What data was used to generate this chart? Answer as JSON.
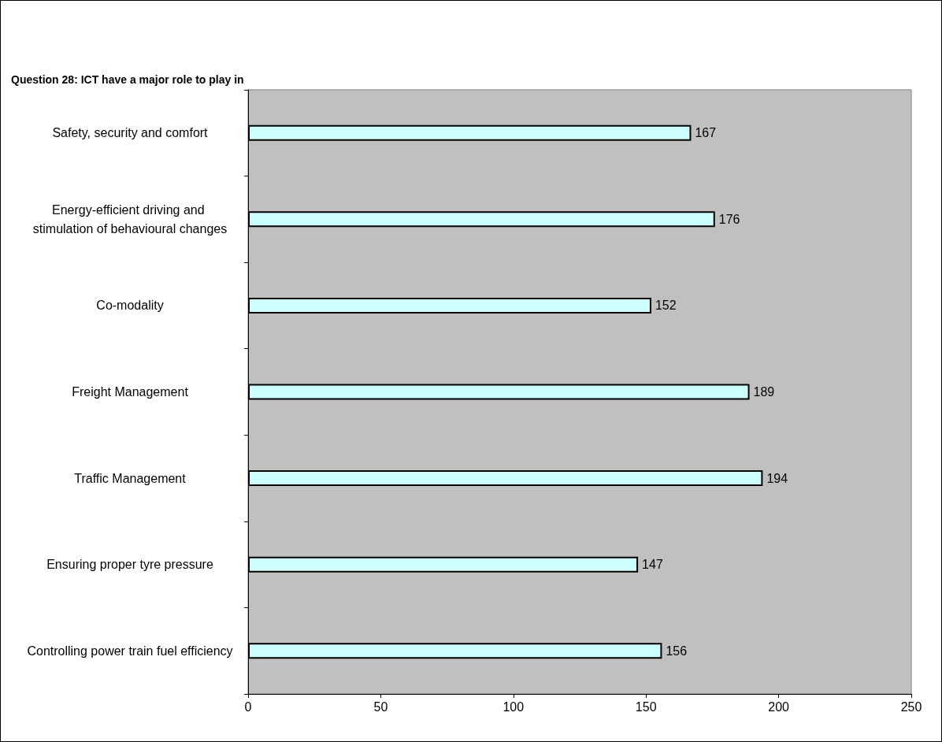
{
  "chart_data": {
    "type": "bar",
    "orientation": "horizontal",
    "title": "Question 28: ICT have a major role to play in",
    "categories": [
      "Safety, security and comfort",
      "Energy-efficient driving and stimulation of behavioural changes",
      "Co-modality",
      "Freight Management",
      "Traffic Management",
      "Ensuring proper tyre pressure",
      "Controlling power train fuel efficiency"
    ],
    "values": [
      167,
      176,
      152,
      189,
      194,
      147,
      156
    ],
    "color": "#ccffff",
    "xlim": [
      0,
      250
    ],
    "xticks": [
      0,
      50,
      100,
      150,
      200,
      250
    ],
    "data_labels": true,
    "grid": false
  }
}
